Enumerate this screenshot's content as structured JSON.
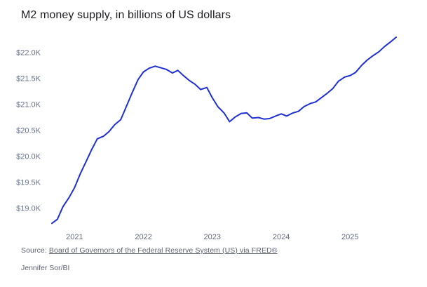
{
  "chart_data": {
    "type": "line",
    "title": "M2 money supply, in billions of US dollars",
    "series_name": "M2 money supply",
    "x": [
      2020.67,
      2020.75,
      2020.83,
      2020.92,
      2021.0,
      2021.08,
      2021.17,
      2021.25,
      2021.33,
      2021.42,
      2021.5,
      2021.58,
      2021.67,
      2021.75,
      2021.83,
      2021.92,
      2022.0,
      2022.08,
      2022.17,
      2022.25,
      2022.33,
      2022.42,
      2022.5,
      2022.58,
      2022.67,
      2022.75,
      2022.83,
      2022.92,
      2023.0,
      2023.08,
      2023.17,
      2023.25,
      2023.33,
      2023.42,
      2023.5,
      2023.58,
      2023.67,
      2023.75,
      2023.83,
      2023.92,
      2024.0,
      2024.08,
      2024.17,
      2024.25,
      2024.33,
      2024.42,
      2024.5,
      2024.58,
      2024.67,
      2024.75,
      2024.83,
      2024.92,
      2025.0,
      2025.08,
      2025.17,
      2025.25,
      2025.33,
      2025.42,
      2025.5,
      2025.58,
      2025.67
    ],
    "values": [
      18.71,
      18.79,
      19.03,
      19.21,
      19.4,
      19.66,
      19.91,
      20.14,
      20.34,
      20.39,
      20.48,
      20.61,
      20.71,
      20.96,
      21.21,
      21.48,
      21.63,
      21.7,
      21.74,
      21.71,
      21.68,
      21.61,
      21.66,
      21.56,
      21.46,
      21.39,
      21.29,
      21.33,
      21.13,
      20.96,
      20.84,
      20.67,
      20.76,
      20.83,
      20.84,
      20.74,
      20.75,
      20.72,
      20.73,
      20.78,
      20.82,
      20.78,
      20.84,
      20.87,
      20.96,
      21.02,
      21.05,
      21.13,
      21.22,
      21.31,
      21.45,
      21.53,
      21.56,
      21.62,
      21.76,
      21.86,
      21.94,
      22.02,
      22.12,
      22.2,
      22.3
    ],
    "x_ticks": {
      "values": [
        2021,
        2022,
        2023,
        2024,
        2025
      ],
      "labels": [
        "2021",
        "2022",
        "2023",
        "2024",
        "2025"
      ]
    },
    "y_ticks": {
      "values": [
        19.0,
        19.5,
        20.0,
        20.5,
        21.0,
        21.5,
        22.0
      ],
      "labels": [
        "$19.0K",
        "$19.5K",
        "$20.0K",
        "$20.5K",
        "$21.0K",
        "$21.5K",
        "$22.0K"
      ]
    },
    "xlim": [
      2020.67,
      2025.72
    ],
    "ylim": [
      18.66,
      22.34
    ],
    "line_color": "#1e2fd5",
    "grid": false,
    "legend": "none"
  },
  "footer": {
    "source_prefix": "Source:",
    "source_link": "Board of Governors of the Federal Reserve System (US) via FRED®",
    "credit": "Jennifer Sor/BI"
  }
}
